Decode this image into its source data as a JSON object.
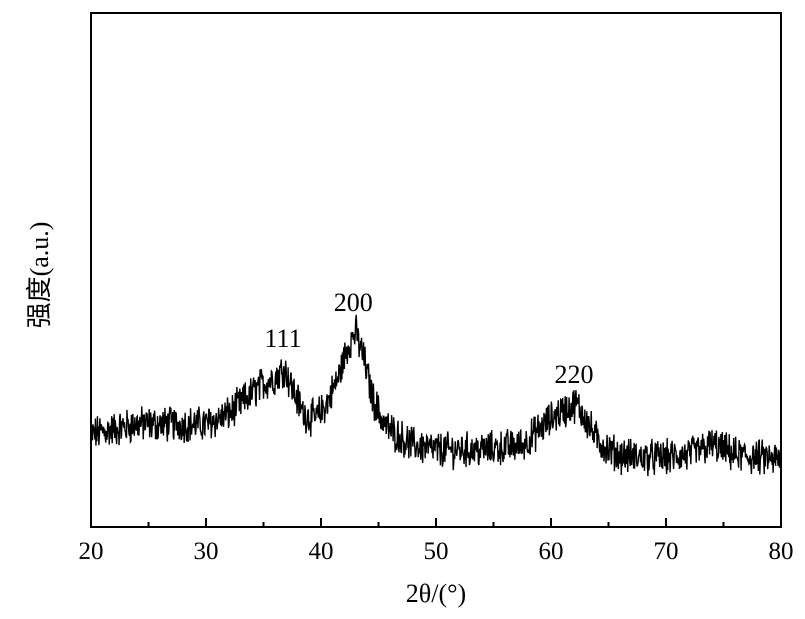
{
  "chart_data": {
    "type": "line",
    "xlabel": "2θ/(°)",
    "ylabel": "强度(a.u.)",
    "xlim": [
      20,
      80
    ],
    "ylim": [
      0,
      100
    ],
    "x_ticks": [
      20,
      30,
      40,
      50,
      60,
      70,
      80
    ],
    "x_tick_labels": [
      "20",
      "30",
      "40",
      "50",
      "60",
      "70",
      "80"
    ],
    "y_ticks_shown": false,
    "grid": false,
    "legend": "none",
    "line_color": "#000000",
    "series": [
      {
        "x": [
          20,
          22,
          24,
          26,
          28,
          30,
          31,
          32,
          33,
          34,
          35,
          36,
          36.8,
          37.5,
          38.5,
          39.5,
          40.5,
          41.5,
          42.3,
          43,
          43.7,
          44.5,
          45.5,
          46.5,
          48,
          50,
          52,
          54,
          56,
          57.5,
          58.5,
          59.5,
          60.5,
          61.5,
          62.2,
          63,
          64,
          65,
          66,
          68,
          70,
          72,
          74,
          75,
          76,
          78,
          80
        ],
        "y": [
          18,
          19,
          20,
          20,
          20,
          20,
          21,
          22,
          24,
          26,
          28,
          29,
          31,
          27,
          22,
          21,
          24,
          29,
          35,
          38,
          33,
          25,
          20,
          18,
          16,
          15,
          15,
          15,
          15.5,
          16,
          18,
          20,
          22,
          23,
          24,
          21,
          17,
          15,
          14,
          13.5,
          13.5,
          14,
          16,
          15,
          14,
          13.5,
          13
        ]
      }
    ],
    "annotations": [
      {
        "text": "111",
        "x": 36.7,
        "y": 35
      },
      {
        "text": "200",
        "x": 42.8,
        "y": 42
      },
      {
        "text": "220",
        "x": 62.0,
        "y": 28
      }
    ]
  }
}
